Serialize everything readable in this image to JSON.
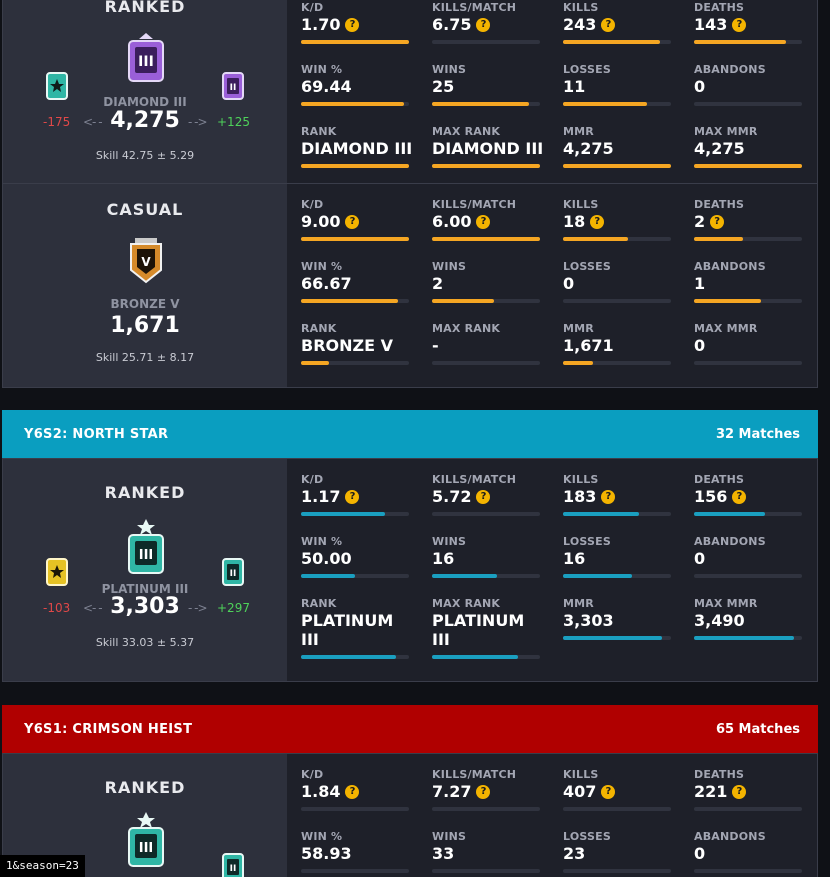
{
  "colors": {
    "orange": "#f5a623",
    "blue": "#1a9fc0",
    "red": "#b30000",
    "teal_header": "#0a9ec0"
  },
  "seasons": [
    {
      "cards": [
        {
          "mode": "RANKED",
          "rank": "DIAMOND III",
          "mmr": "4,275",
          "delta_neg": "-175",
          "delta_pos": "+125",
          "skill": "Skill 42.75 ± 5.29",
          "stats": [
            {
              "label": "K/D",
              "value": "1.70",
              "help": true,
              "fill": 1.0
            },
            {
              "label": "KILLS/MATCH",
              "value": "6.75",
              "help": true,
              "fill": 0.0
            },
            {
              "label": "KILLS",
              "value": "243",
              "help": true,
              "fill": 0.9
            },
            {
              "label": "DEATHS",
              "value": "143",
              "help": true,
              "fill": 0.85
            },
            {
              "label": "WIN %",
              "value": "69.44",
              "help": false,
              "fill": 0.95
            },
            {
              "label": "WINS",
              "value": "25",
              "help": false,
              "fill": 0.9
            },
            {
              "label": "LOSSES",
              "value": "11",
              "help": false,
              "fill": 0.78
            },
            {
              "label": "ABANDONS",
              "value": "0",
              "help": false,
              "fill": 0.0
            },
            {
              "label": "RANK",
              "value": "DIAMOND III",
              "help": false,
              "fill": 1.0
            },
            {
              "label": "MAX RANK",
              "value": "DIAMOND III",
              "help": false,
              "fill": 1.0
            },
            {
              "label": "MMR",
              "value": "4,275",
              "help": false,
              "fill": 1.0
            },
            {
              "label": "MAX MMR",
              "value": "4,275",
              "help": false,
              "fill": 1.0
            }
          ]
        },
        {
          "mode": "CASUAL",
          "rank": "BRONZE V",
          "mmr": "1,671",
          "skill": "Skill 25.71 ± 8.17",
          "stats": [
            {
              "label": "K/D",
              "value": "9.00",
              "help": true,
              "fill": 1.0
            },
            {
              "label": "KILLS/MATCH",
              "value": "6.00",
              "help": true,
              "fill": 1.0
            },
            {
              "label": "KILLS",
              "value": "18",
              "help": true,
              "fill": 0.6
            },
            {
              "label": "DEATHS",
              "value": "2",
              "help": true,
              "fill": 0.45
            },
            {
              "label": "WIN %",
              "value": "66.67",
              "help": false,
              "fill": 0.9
            },
            {
              "label": "WINS",
              "value": "2",
              "help": false,
              "fill": 0.57
            },
            {
              "label": "LOSSES",
              "value": "0",
              "help": false,
              "fill": 0.0
            },
            {
              "label": "ABANDONS",
              "value": "1",
              "help": false,
              "fill": 0.62
            },
            {
              "label": "RANK",
              "value": "BRONZE V",
              "help": false,
              "fill": 0.26
            },
            {
              "label": "MAX RANK",
              "value": "-",
              "help": false,
              "fill": 0.0
            },
            {
              "label": "MMR",
              "value": "1,671",
              "help": false,
              "fill": 0.28
            },
            {
              "label": "MAX MMR",
              "value": "0",
              "help": false,
              "fill": 0.0
            }
          ]
        }
      ]
    },
    {
      "title": "Y6S2: NORTH STAR",
      "matches": "32 Matches",
      "cards": [
        {
          "mode": "RANKED",
          "rank": "PLATINUM III",
          "mmr": "3,303",
          "delta_neg": "-103",
          "delta_pos": "+297",
          "skill": "Skill 33.03 ± 5.37",
          "stats": [
            {
              "label": "K/D",
              "value": "1.17",
              "help": true,
              "fill": 0.78
            },
            {
              "label": "KILLS/MATCH",
              "value": "5.72",
              "help": true,
              "fill": 0.0
            },
            {
              "label": "KILLS",
              "value": "183",
              "help": true,
              "fill": 0.7
            },
            {
              "label": "DEATHS",
              "value": "156",
              "help": true,
              "fill": 0.66
            },
            {
              "label": "WIN %",
              "value": "50.00",
              "help": false,
              "fill": 0.5
            },
            {
              "label": "WINS",
              "value": "16",
              "help": false,
              "fill": 0.6
            },
            {
              "label": "LOSSES",
              "value": "16",
              "help": false,
              "fill": 0.64
            },
            {
              "label": "ABANDONS",
              "value": "0",
              "help": false,
              "fill": 0.0
            },
            {
              "label": "RANK",
              "value": "PLATINUM III",
              "help": false,
              "fill": 0.88
            },
            {
              "label": "MAX RANK",
              "value": "PLATINUM III",
              "help": false,
              "fill": 0.8
            },
            {
              "label": "MMR",
              "value": "3,303",
              "help": false,
              "fill": 0.92
            },
            {
              "label": "MAX MMR",
              "value": "3,490",
              "help": false,
              "fill": 0.93
            }
          ]
        }
      ]
    },
    {
      "title": "Y6S1: CRIMSON HEIST",
      "matches": "65 Matches",
      "cards": [
        {
          "mode": "RANKED",
          "stats": [
            {
              "label": "K/D",
              "value": "1.84",
              "help": true,
              "fill": 0.0
            },
            {
              "label": "KILLS/MATCH",
              "value": "7.27",
              "help": true,
              "fill": 0.0
            },
            {
              "label": "KILLS",
              "value": "407",
              "help": true,
              "fill": 0.0
            },
            {
              "label": "DEATHS",
              "value": "221",
              "help": true,
              "fill": 0.0
            },
            {
              "label": "WIN %",
              "value": "58.93",
              "help": false,
              "fill": 0.0
            },
            {
              "label": "WINS",
              "value": "33",
              "help": false,
              "fill": 0.0
            },
            {
              "label": "LOSSES",
              "value": "23",
              "help": false,
              "fill": 0.0
            },
            {
              "label": "ABANDONS",
              "value": "0",
              "help": false,
              "fill": 0.0
            }
          ]
        }
      ]
    }
  ],
  "status_url": "1&season=23",
  "help_glyph": "?",
  "arrow_left": "<- -",
  "arrow_right": "- ->",
  "icons": [
    "rank-badge-icon",
    "help-icon",
    "arrow-icon"
  ]
}
